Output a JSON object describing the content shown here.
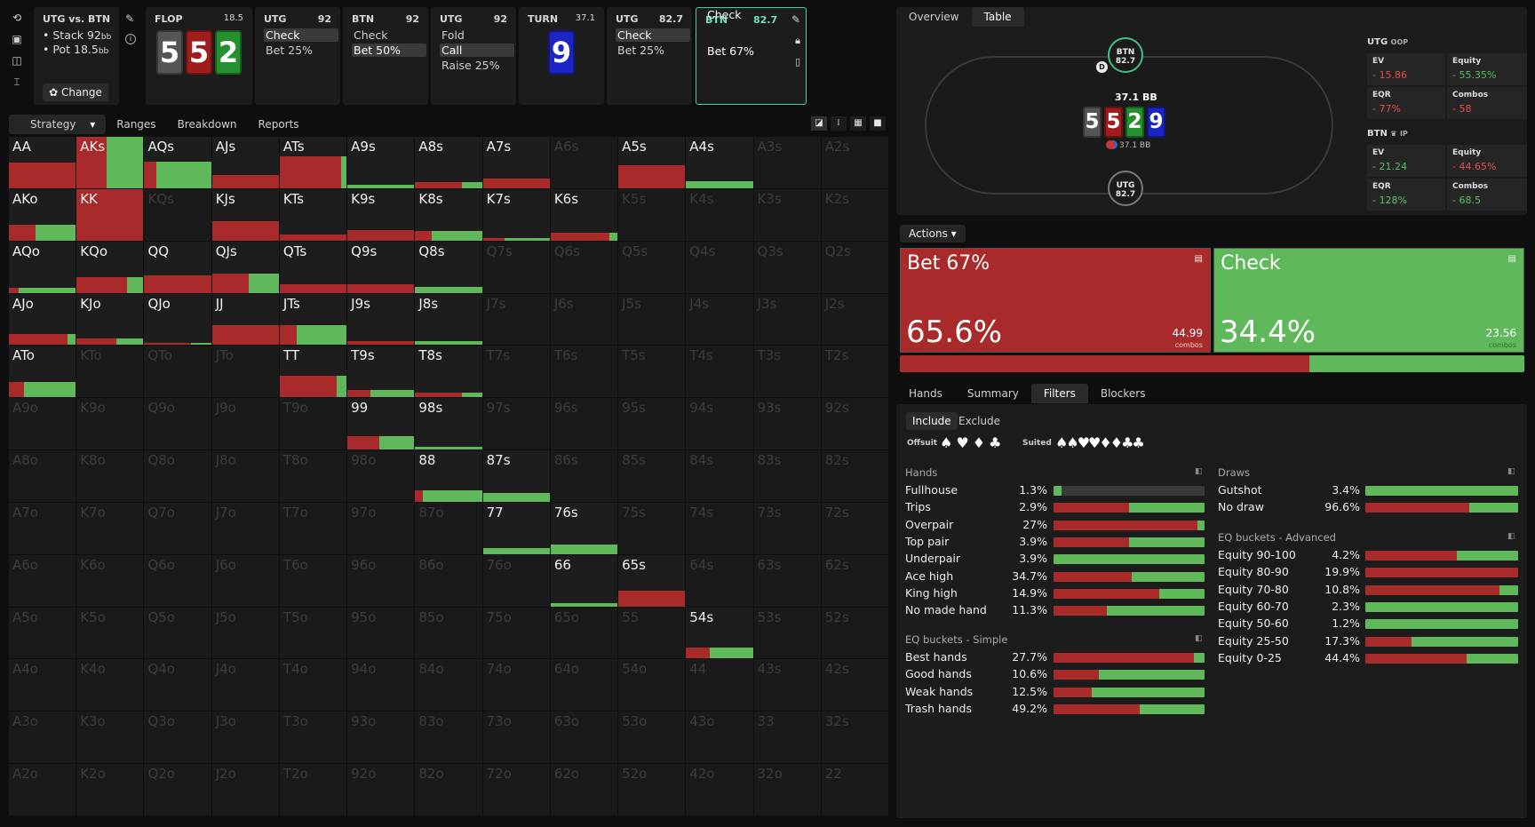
{
  "icons": [
    "reset-icon",
    "save-icon",
    "gamepad-icon",
    "text-cursor-icon"
  ],
  "matchup": {
    "title": "UTG vs. BTN",
    "stack_label": "Stack",
    "stack": "92",
    "pot_label": "Pot",
    "pot": "18.5",
    "unit": "bb",
    "change_label": "Change"
  },
  "flop": {
    "label": "FLOP",
    "pot": "18.5",
    "cards": [
      "5",
      "5",
      "2"
    ]
  },
  "hist1": {
    "player": "UTG",
    "stack": "92",
    "lines": [
      "Check",
      "Bet 25%"
    ]
  },
  "hist2": {
    "player": "BTN",
    "stack": "92",
    "lines": [
      "Check",
      "Bet 50%"
    ]
  },
  "hist3": {
    "player": "UTG",
    "stack": "92",
    "lines": [
      "Fold",
      "Call",
      "Raise 25%"
    ]
  },
  "turn": {
    "label": "TURN",
    "pot": "37.1",
    "card": "9"
  },
  "hist4": {
    "player": "UTG",
    "stack": "82.7",
    "lines": [
      "Check",
      "Bet 25%"
    ]
  },
  "hist5": {
    "player": "BTN",
    "stack": "82.7",
    "lines": [
      "Check",
      "Bet 67%"
    ]
  },
  "left_tabs": [
    "Strategy",
    "Ranges",
    "Breakdown",
    "Reports"
  ],
  "grid": [
    [
      [
        "AA",
        100,
        0,
        50
      ],
      [
        "AKs",
        45,
        55,
        100
      ],
      [
        "AQs",
        18,
        82,
        52
      ],
      [
        "AJs",
        100,
        0,
        25
      ],
      [
        "ATs",
        92,
        8,
        62
      ],
      [
        "A9s",
        0,
        100,
        7
      ],
      [
        "A8s",
        70,
        30,
        12
      ],
      [
        "A7s",
        100,
        0,
        18
      ],
      [
        "A6s",
        0,
        0,
        0,
        1
      ],
      [
        "A5s",
        100,
        0,
        45
      ],
      [
        "A4s",
        0,
        100,
        14
      ],
      [
        "A3s",
        0,
        0,
        0,
        1
      ],
      [
        "A2s",
        0,
        0,
        0,
        1
      ]
    ],
    [
      [
        "AKo",
        40,
        60,
        30
      ],
      [
        "KK",
        100,
        0,
        100
      ],
      [
        "KQs",
        0,
        0,
        0,
        1
      ],
      [
        "KJs",
        100,
        0,
        38
      ],
      [
        "KTs",
        100,
        0,
        12
      ],
      [
        "K9s",
        100,
        0,
        20
      ],
      [
        "K8s",
        25,
        75,
        18
      ],
      [
        "K7s",
        33,
        67,
        5
      ],
      [
        "K6s",
        88,
        12,
        15
      ],
      [
        "K5s",
        0,
        0,
        0,
        1
      ],
      [
        "K4s",
        0,
        0,
        0,
        1
      ],
      [
        "K3s",
        0,
        0,
        0,
        1
      ],
      [
        "K2s",
        0,
        0,
        0,
        1
      ]
    ],
    [
      [
        "AQo",
        15,
        85,
        9
      ],
      [
        "KQo",
        75,
        25,
        30
      ],
      [
        "QQ",
        100,
        0,
        34
      ],
      [
        "QJs",
        55,
        45,
        38
      ],
      [
        "QTs",
        100,
        0,
        16
      ],
      [
        "Q9s",
        100,
        0,
        16
      ],
      [
        "Q8s",
        0,
        100,
        12
      ],
      [
        "Q7s",
        0,
        0,
        0,
        1
      ],
      [
        "Q6s",
        0,
        0,
        0,
        1
      ],
      [
        "Q5s",
        0,
        0,
        0,
        1
      ],
      [
        "Q4s",
        0,
        0,
        0,
        1
      ],
      [
        "Q3s",
        0,
        0,
        0,
        1
      ],
      [
        "Q2s",
        0,
        0,
        0,
        1
      ]
    ],
    [
      [
        "AJo",
        88,
        12,
        22
      ],
      [
        "KJo",
        60,
        40,
        12
      ],
      [
        "QJo",
        70,
        30,
        4
      ],
      [
        "JJ",
        100,
        0,
        38
      ],
      [
        "JTs",
        25,
        75,
        38
      ],
      [
        "J9s",
        100,
        0,
        8
      ],
      [
        "J8s",
        0,
        100,
        8
      ],
      [
        "J7s",
        0,
        0,
        0,
        1
      ],
      [
        "J6s",
        0,
        0,
        0,
        1
      ],
      [
        "J5s",
        0,
        0,
        0,
        1
      ],
      [
        "J4s",
        0,
        0,
        0,
        1
      ],
      [
        "J3s",
        0,
        0,
        0,
        1
      ],
      [
        "J2s",
        0,
        0,
        0,
        1
      ]
    ],
    [
      [
        "ATo",
        22,
        78,
        30
      ],
      [
        "KTo",
        0,
        0,
        0,
        1
      ],
      [
        "QTo",
        0,
        0,
        0,
        1
      ],
      [
        "JTo",
        0,
        0,
        0,
        1
      ],
      [
        "TT",
        85,
        15,
        42
      ],
      [
        "T9s",
        35,
        65,
        14
      ],
      [
        "T8s",
        70,
        30,
        9
      ],
      [
        "T7s",
        0,
        0,
        0,
        1
      ],
      [
        "T6s",
        0,
        0,
        0,
        1
      ],
      [
        "T5s",
        0,
        0,
        0,
        1
      ],
      [
        "T4s",
        0,
        0,
        0,
        1
      ],
      [
        "T3s",
        0,
        0,
        0,
        1
      ],
      [
        "T2s",
        0,
        0,
        0,
        1
      ]
    ],
    [
      [
        "A9o",
        0,
        0,
        0,
        1
      ],
      [
        "K9o",
        0,
        0,
        0,
        1
      ],
      [
        "Q9o",
        0,
        0,
        0,
        1
      ],
      [
        "J9o",
        0,
        0,
        0,
        1
      ],
      [
        "T9o",
        0,
        0,
        0,
        1
      ],
      [
        "99",
        48,
        52,
        26
      ],
      [
        "98s",
        0,
        100,
        5
      ],
      [
        "97s",
        0,
        0,
        0,
        1
      ],
      [
        "96s",
        0,
        0,
        0,
        1
      ],
      [
        "95s",
        0,
        0,
        0,
        1
      ],
      [
        "94s",
        0,
        0,
        0,
        1
      ],
      [
        "93s",
        0,
        0,
        0,
        1
      ],
      [
        "92s",
        0,
        0,
        0,
        1
      ]
    ],
    [
      [
        "A8o",
        0,
        0,
        0,
        1
      ],
      [
        "K8o",
        0,
        0,
        0,
        1
      ],
      [
        "Q8o",
        0,
        0,
        0,
        1
      ],
      [
        "J8o",
        0,
        0,
        0,
        1
      ],
      [
        "T8o",
        0,
        0,
        0,
        1
      ],
      [
        "98o",
        0,
        0,
        0,
        1
      ],
      [
        "88",
        12,
        88,
        22
      ],
      [
        "87s",
        0,
        100,
        18
      ],
      [
        "86s",
        0,
        0,
        0,
        1
      ],
      [
        "85s",
        0,
        0,
        0,
        1
      ],
      [
        "84s",
        0,
        0,
        0,
        1
      ],
      [
        "83s",
        0,
        0,
        0,
        1
      ],
      [
        "82s",
        0,
        0,
        0,
        1
      ]
    ],
    [
      [
        "A7o",
        0,
        0,
        0,
        1
      ],
      [
        "K7o",
        0,
        0,
        0,
        1
      ],
      [
        "Q7o",
        0,
        0,
        0,
        1
      ],
      [
        "J7o",
        0,
        0,
        0,
        1
      ],
      [
        "T7o",
        0,
        0,
        0,
        1
      ],
      [
        "97o",
        0,
        0,
        0,
        1
      ],
      [
        "87o",
        0,
        0,
        0,
        1
      ],
      [
        "77",
        0,
        100,
        12
      ],
      [
        "76s",
        0,
        100,
        18
      ],
      [
        "75s",
        0,
        0,
        0,
        1
      ],
      [
        "74s",
        0,
        0,
        0,
        1
      ],
      [
        "73s",
        0,
        0,
        0,
        1
      ],
      [
        "72s",
        0,
        0,
        0,
        1
      ]
    ],
    [
      [
        "A6o",
        0,
        0,
        0,
        1
      ],
      [
        "K6o",
        0,
        0,
        0,
        1
      ],
      [
        "Q6o",
        0,
        0,
        0,
        1
      ],
      [
        "J6o",
        0,
        0,
        0,
        1
      ],
      [
        "T6o",
        0,
        0,
        0,
        1
      ],
      [
        "96o",
        0,
        0,
        0,
        1
      ],
      [
        "86o",
        0,
        0,
        0,
        1
      ],
      [
        "76o",
        0,
        0,
        0,
        1
      ],
      [
        "66",
        0,
        100,
        6
      ],
      [
        "65s",
        100,
        0,
        30
      ],
      [
        "64s",
        0,
        0,
        0,
        1
      ],
      [
        "63s",
        0,
        0,
        0,
        1
      ],
      [
        "62s",
        0,
        0,
        0,
        1
      ]
    ],
    [
      [
        "A5o",
        0,
        0,
        0,
        1
      ],
      [
        "K5o",
        0,
        0,
        0,
        1
      ],
      [
        "Q5o",
        0,
        0,
        0,
        1
      ],
      [
        "J5o",
        0,
        0,
        0,
        1
      ],
      [
        "T5o",
        0,
        0,
        0,
        1
      ],
      [
        "95o",
        0,
        0,
        0,
        1
      ],
      [
        "85o",
        0,
        0,
        0,
        1
      ],
      [
        "75o",
        0,
        0,
        0,
        1
      ],
      [
        "65o",
        0,
        0,
        0,
        1
      ],
      [
        "55",
        0,
        0,
        0,
        1
      ],
      [
        "54s",
        35,
        65,
        22
      ],
      [
        "53s",
        0,
        0,
        0,
        1
      ],
      [
        "52s",
        0,
        0,
        0,
        1
      ]
    ],
    [
      [
        "A4o",
        0,
        0,
        0,
        1
      ],
      [
        "K4o",
        0,
        0,
        0,
        1
      ],
      [
        "Q4o",
        0,
        0,
        0,
        1
      ],
      [
        "J4o",
        0,
        0,
        0,
        1
      ],
      [
        "T4o",
        0,
        0,
        0,
        1
      ],
      [
        "94o",
        0,
        0,
        0,
        1
      ],
      [
        "84o",
        0,
        0,
        0,
        1
      ],
      [
        "74o",
        0,
        0,
        0,
        1
      ],
      [
        "64o",
        0,
        0,
        0,
        1
      ],
      [
        "54o",
        0,
        0,
        0,
        1
      ],
      [
        "44",
        0,
        0,
        0,
        1
      ],
      [
        "43s",
        0,
        0,
        0,
        1
      ],
      [
        "42s",
        0,
        0,
        0,
        1
      ]
    ],
    [
      [
        "A3o",
        0,
        0,
        0,
        1
      ],
      [
        "K3o",
        0,
        0,
        0,
        1
      ],
      [
        "Q3o",
        0,
        0,
        0,
        1
      ],
      [
        "J3o",
        0,
        0,
        0,
        1
      ],
      [
        "T3o",
        0,
        0,
        0,
        1
      ],
      [
        "93o",
        0,
        0,
        0,
        1
      ],
      [
        "83o",
        0,
        0,
        0,
        1
      ],
      [
        "73o",
        0,
        0,
        0,
        1
      ],
      [
        "63o",
        0,
        0,
        0,
        1
      ],
      [
        "53o",
        0,
        0,
        0,
        1
      ],
      [
        "43o",
        0,
        0,
        0,
        1
      ],
      [
        "33",
        0,
        0,
        0,
        1
      ],
      [
        "32s",
        0,
        0,
        0,
        1
      ]
    ],
    [
      [
        "A2o",
        0,
        0,
        0,
        1
      ],
      [
        "K2o",
        0,
        0,
        0,
        1
      ],
      [
        "Q2o",
        0,
        0,
        0,
        1
      ],
      [
        "J2o",
        0,
        0,
        0,
        1
      ],
      [
        "T2o",
        0,
        0,
        0,
        1
      ],
      [
        "92o",
        0,
        0,
        0,
        1
      ],
      [
        "82o",
        0,
        0,
        0,
        1
      ],
      [
        "72o",
        0,
        0,
        0,
        1
      ],
      [
        "62o",
        0,
        0,
        0,
        1
      ],
      [
        "52o",
        0,
        0,
        0,
        1
      ],
      [
        "42o",
        0,
        0,
        0,
        1
      ],
      [
        "32o",
        0,
        0,
        0,
        1
      ],
      [
        "22",
        0,
        0,
        0,
        1
      ]
    ]
  ],
  "right_tabs": [
    "Overview",
    "Table"
  ],
  "table": {
    "btn_label": "BTN",
    "btn_stack": "82.7",
    "utg_label": "UTG",
    "utg_stack": "82.7",
    "pot": "37.1 BB",
    "dealer": "D",
    "chips": "37.1 BB",
    "board": [
      "5",
      "5",
      "2",
      "9"
    ]
  },
  "utg_stats": {
    "name": "UTG",
    "pos": "OOP",
    "ev_k": "EV",
    "ev": "- 15.86",
    "eq_k": "Equity",
    "eq": "- 55.35%",
    "eqr_k": "EQR",
    "eqr": "- 77%",
    "cb_k": "Combos",
    "cb": "- 58"
  },
  "btn_stats": {
    "name": "BTN",
    "pos": "IP",
    "ev_k": "EV",
    "ev": "- 21.24",
    "eq_k": "Equity",
    "eq": "- 44.65%",
    "eqr_k": "EQR",
    "eqr": "- 128%",
    "cb_k": "Combos",
    "cb": "- 68.5"
  },
  "actions_label": "Actions",
  "bet": {
    "name": "Bet 67%",
    "pct": "65.6%",
    "combos": "44.99",
    "combos_label": "combos",
    "share": 65.6
  },
  "check": {
    "name": "Check",
    "pct": "34.4%",
    "combos": "23.56",
    "combos_label": "combos",
    "share": 34.4
  },
  "bottom_tabs": [
    "Hands",
    "Summary",
    "Filters",
    "Blockers"
  ],
  "inc_ex": [
    "Include",
    "Exclude"
  ],
  "offsuit_label": "Offsuit",
  "suited_label": "Suited",
  "hands_title": "Hands",
  "hands": [
    [
      "Fullhouse",
      "1.3%",
      0,
      5
    ],
    [
      "Trips",
      "2.9%",
      50,
      50
    ],
    [
      "Overpair",
      "27%",
      95,
      5
    ],
    [
      "Top pair",
      "3.9%",
      50,
      50
    ],
    [
      "Underpair",
      "3.9%",
      0,
      100
    ],
    [
      "Ace high",
      "34.7%",
      52,
      48
    ],
    [
      "King high",
      "14.9%",
      70,
      30
    ],
    [
      "No made hand",
      "11.3%",
      35,
      65
    ]
  ],
  "eq_simple_title": "EQ buckets - Simple",
  "eq_simple": [
    [
      "Best hands",
      "27.7%",
      93,
      7
    ],
    [
      "Good hands",
      "10.6%",
      30,
      70
    ],
    [
      "Weak hands",
      "12.5%",
      25,
      75
    ],
    [
      "Trash hands",
      "49.2%",
      57,
      43
    ]
  ],
  "draws_title": "Draws",
  "draws": [
    [
      "Gutshot",
      "3.4%",
      0,
      100
    ],
    [
      "No draw",
      "96.6%",
      68,
      32
    ]
  ],
  "eq_adv_title": "EQ buckets - Advanced",
  "eq_adv": [
    [
      "Equity 90-100",
      "4.2%",
      60,
      40
    ],
    [
      "Equity 80-90",
      "19.9%",
      100,
      0
    ],
    [
      "Equity 70-80",
      "10.8%",
      88,
      12
    ],
    [
      "Equity 60-70",
      "2.3%",
      0,
      100
    ],
    [
      "Equity 50-60",
      "1.2%",
      0,
      100
    ],
    [
      "Equity 25-50",
      "17.3%",
      30,
      70
    ],
    [
      "Equity 0-25",
      "44.4%",
      66,
      34
    ]
  ]
}
